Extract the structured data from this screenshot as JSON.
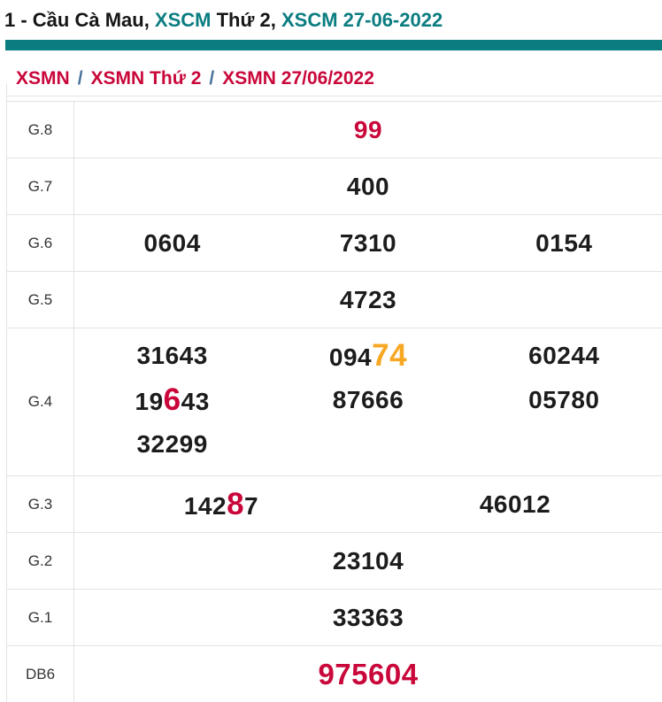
{
  "title": {
    "part1": "1 - Cầu Cà Mau, ",
    "part2": "XSCM",
    "part3": " Thứ 2, ",
    "part4": "XSCM 27-06-2022"
  },
  "breadcrumb": {
    "items": [
      "XSMN",
      "XSMN Thứ 2",
      "XSMN 27/06/2022"
    ],
    "separator": "/"
  },
  "results": {
    "g8": {
      "label": "G.8",
      "value": "99"
    },
    "g7": {
      "label": "G.7",
      "value": "400"
    },
    "g6": {
      "label": "G.6",
      "v1": "0604",
      "v2": "7310",
      "v3": "0154"
    },
    "g5": {
      "label": "G.5",
      "value": "4723"
    },
    "g4": {
      "label": "G.4",
      "r1c1": "31643",
      "r1c2_pre": "094",
      "r1c2_hl": "74",
      "r1c3": "60244",
      "r2c1_pre": "19",
      "r2c1_hl": "6",
      "r2c1_suf": "43",
      "r2c2": "87666",
      "r2c3": "05780",
      "r3c1": "32299"
    },
    "g3": {
      "label": "G.3",
      "v1_pre": "142",
      "v1_hl": "8",
      "v1_suf": "7",
      "v2": "46012"
    },
    "g2": {
      "label": "G.2",
      "value": "23104"
    },
    "g1": {
      "label": "G.1",
      "value": "33363"
    },
    "db": {
      "label": "DB6",
      "value": "975604"
    }
  },
  "colors": {
    "teal": "#0b7d81",
    "red": "#c9073a",
    "orange": "#f7a823",
    "border": "#e2e2e2"
  }
}
